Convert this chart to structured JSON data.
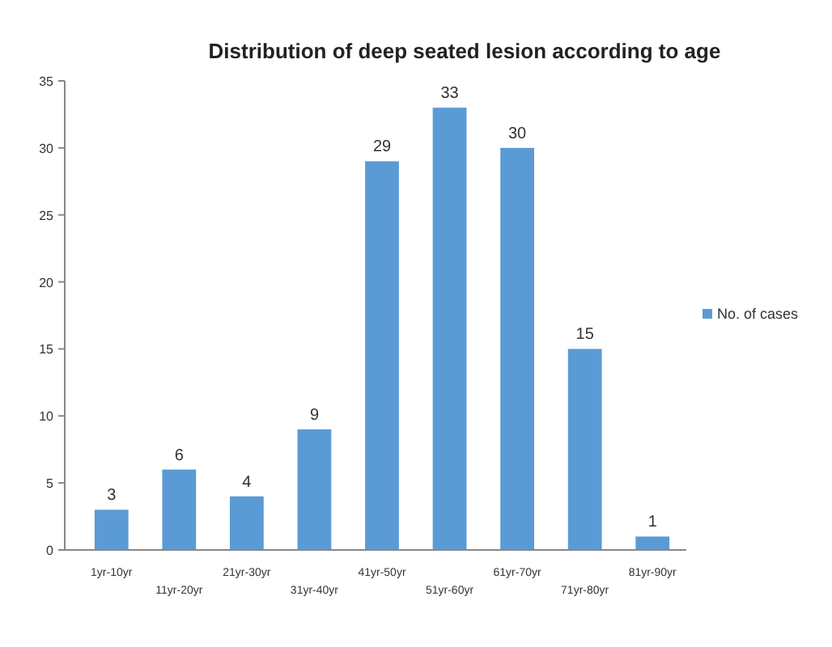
{
  "chart_data": {
    "type": "bar",
    "title": "Distribution of deep seated lesion according to age",
    "categories": [
      "1yr-10yr",
      "11yr-20yr",
      "21yr-30yr",
      "31yr-40yr",
      "41yr-50yr",
      "51yr-60yr",
      "61yr-70yr",
      "71yr-80yr",
      "81yr-90yr"
    ],
    "series": [
      {
        "name": "No. of cases",
        "color": "#5b9bd5",
        "values": [
          3,
          6,
          4,
          9,
          29,
          33,
          30,
          15,
          1
        ]
      }
    ],
    "ylim": [
      0,
      35
    ],
    "yticks": [
      0,
      5,
      10,
      15,
      20,
      25,
      30,
      35
    ],
    "grid": false,
    "legend": "right",
    "data_labels": true
  }
}
